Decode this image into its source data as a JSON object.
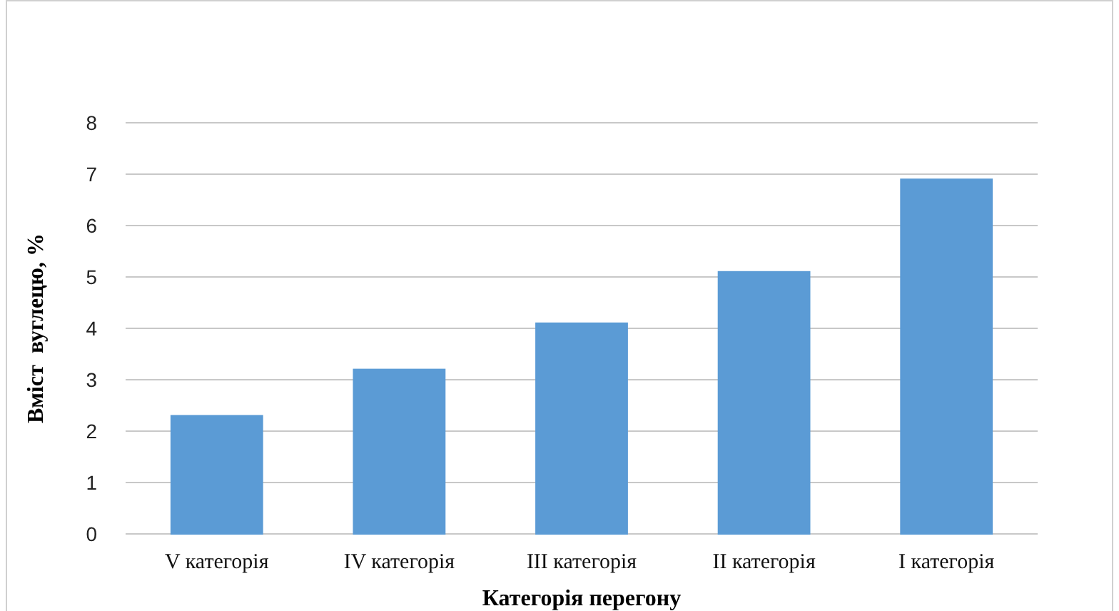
{
  "chart_data": {
    "type": "bar",
    "xlabel": "Категорія перегону",
    "ylabel": "Вміст  вуглецю, %",
    "categories": [
      "V категорія",
      "IV категорія",
      "III категорія",
      "II категорія",
      "I категорія"
    ],
    "values": [
      2.3,
      3.2,
      4.1,
      5.1,
      6.9
    ],
    "color": "#5b9bd5",
    "ylim": [
      0,
      8
    ],
    "yticks": [
      0,
      1,
      2,
      3,
      4,
      5,
      6,
      7,
      8
    ],
    "grid": "y"
  }
}
